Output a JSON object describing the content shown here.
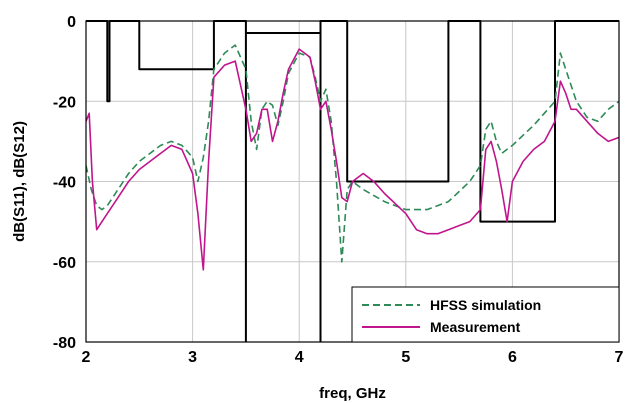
{
  "chart_data": {
    "type": "line",
    "title": "",
    "xlabel": "freq, GHz",
    "ylabel": "dB(S11), dB(S12)",
    "xlim": [
      2,
      7
    ],
    "ylim": [
      -80,
      0
    ],
    "xticks": [
      "2",
      "3",
      "4",
      "5",
      "6",
      "7"
    ],
    "yticks": [
      "0",
      "-20",
      "-40",
      "-60",
      "-80"
    ],
    "grid": true,
    "legend_position": "bottom-right",
    "series": [
      {
        "name": "HFSS simulation",
        "role": "S12",
        "color": "#2e8b57",
        "dash": "dashed",
        "x": [
          2.0,
          2.05,
          2.1,
          2.15,
          2.2,
          2.3,
          2.4,
          2.5,
          2.6,
          2.7,
          2.8,
          2.9,
          3.0,
          3.05,
          3.1,
          3.15,
          3.2,
          3.3,
          3.4,
          3.5,
          3.55,
          3.6,
          3.65,
          3.7,
          3.75,
          3.8,
          3.85,
          3.9,
          4.0,
          4.1,
          4.15,
          4.2,
          4.25,
          4.3,
          4.35,
          4.4,
          4.45,
          4.5,
          4.6,
          4.8,
          5.0,
          5.2,
          5.4,
          5.6,
          5.7,
          5.75,
          5.8,
          5.85,
          5.9,
          6.0,
          6.2,
          6.4,
          6.45,
          6.5,
          6.6,
          6.7,
          6.8,
          6.9,
          7.0
        ],
        "values": [
          -36,
          -42,
          -46,
          -47,
          -46,
          -42,
          -38,
          -35,
          -33,
          -31,
          -30,
          -31,
          -34,
          -40,
          -34,
          -25,
          -12,
          -8,
          -6,
          -12,
          -25,
          -32,
          -22,
          -20,
          -21,
          -26,
          -20,
          -13,
          -8,
          -9,
          -14,
          -20,
          -17,
          -25,
          -40,
          -60,
          -42,
          -40,
          -42,
          -45,
          -47,
          -47,
          -45,
          -40,
          -36,
          -27,
          -25,
          -30,
          -33,
          -31,
          -26,
          -20,
          -8,
          -12,
          -20,
          -24,
          -25,
          -22,
          -20
        ]
      },
      {
        "name": "Measurement",
        "role": "S12",
        "color": "#c0158c",
        "dash": "solid",
        "x": [
          2.0,
          2.03,
          2.06,
          2.1,
          2.15,
          2.2,
          2.3,
          2.4,
          2.5,
          2.6,
          2.7,
          2.8,
          2.9,
          3.0,
          3.05,
          3.1,
          3.15,
          3.2,
          3.3,
          3.4,
          3.5,
          3.55,
          3.6,
          3.65,
          3.7,
          3.75,
          3.8,
          3.85,
          3.9,
          4.0,
          4.1,
          4.15,
          4.2,
          4.25,
          4.3,
          4.35,
          4.4,
          4.45,
          4.5,
          4.6,
          4.7,
          4.8,
          5.0,
          5.1,
          5.2,
          5.3,
          5.4,
          5.5,
          5.6,
          5.7,
          5.75,
          5.8,
          5.85,
          5.9,
          5.95,
          6.0,
          6.1,
          6.2,
          6.3,
          6.4,
          6.45,
          6.5,
          6.55,
          6.6,
          6.7,
          6.8,
          6.9,
          7.0
        ],
        "values": [
          -25,
          -23,
          -40,
          -52,
          -50,
          -48,
          -44,
          -40,
          -37,
          -35,
          -33,
          -31,
          -32,
          -38,
          -48,
          -62,
          -35,
          -14,
          -11,
          -10,
          -22,
          -30,
          -28,
          -22,
          -22,
          -30,
          -25,
          -18,
          -12,
          -7,
          -9,
          -15,
          -22,
          -20,
          -27,
          -35,
          -44,
          -45,
          -40,
          -38,
          -40,
          -43,
          -48,
          -52,
          -53,
          -53,
          -52,
          -51,
          -50,
          -47,
          -32,
          -30,
          -35,
          -42,
          -50,
          -40,
          -35,
          -32,
          -30,
          -25,
          -15,
          -18,
          -22,
          -22,
          -25,
          -28,
          -30,
          -29
        ]
      },
      {
        "name": "",
        "role": "S11 mask",
        "color": "#000000",
        "dash": "solid",
        "x": [
          2.0,
          2.2,
          2.2,
          2.22,
          2.22,
          2.5,
          2.5,
          3.2,
          3.2,
          3.5,
          3.5,
          4.2,
          4.2,
          4.45,
          4.45,
          4.7,
          4.7,
          5.4,
          5.4,
          5.7,
          5.7,
          6.4,
          6.4,
          7.0
        ],
        "values": [
          0,
          0,
          -20,
          -20,
          0,
          0,
          -12,
          -12,
          0,
          0,
          -3,
          -3,
          0,
          0,
          -40,
          -40,
          -40,
          -40,
          0,
          0,
          -50,
          -50,
          0,
          0
        ]
      },
      {
        "name": "",
        "role": "S12 mask",
        "color": "#000000",
        "dash": "solid",
        "x": [
          3.5,
          3.5,
          4.2,
          4.2
        ],
        "values": [
          -80,
          -3,
          -3,
          -80
        ]
      }
    ]
  }
}
